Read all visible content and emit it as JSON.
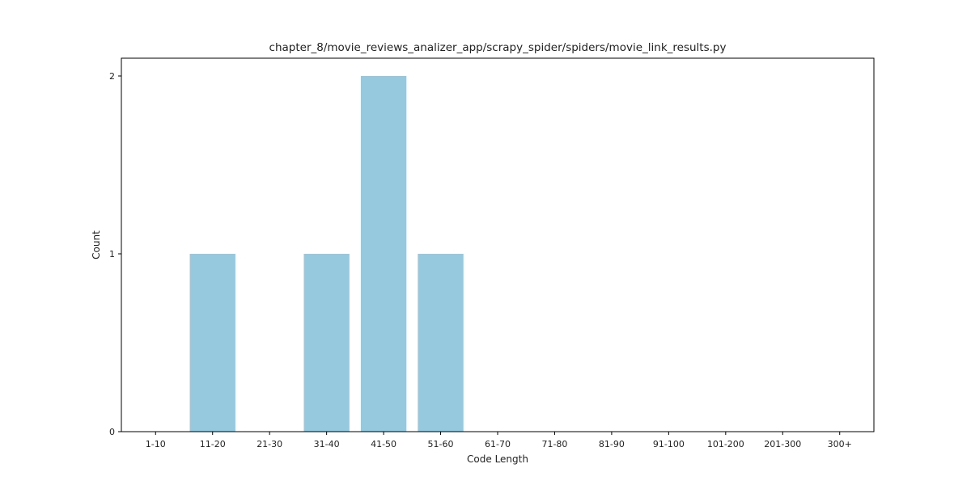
{
  "chart_data": {
    "type": "bar",
    "title": "chapter_8/movie_reviews_analizer_app/scrapy_spider/spiders/movie_link_results.py",
    "xlabel": "Code Length",
    "ylabel": "Count",
    "categories": [
      "1-10",
      "11-20",
      "21-30",
      "31-40",
      "41-50",
      "51-60",
      "61-70",
      "71-80",
      "81-90",
      "91-100",
      "101-200",
      "201-300",
      "300+"
    ],
    "values": [
      0,
      1,
      0,
      1,
      2,
      1,
      0,
      0,
      0,
      0,
      0,
      0,
      0
    ],
    "ylim": [
      0,
      2.1
    ],
    "yticks": [
      0,
      1,
      2
    ],
    "grid": false,
    "colors": {
      "bar": "#96c9dd",
      "axis": "#000000",
      "text": "#222222"
    }
  }
}
